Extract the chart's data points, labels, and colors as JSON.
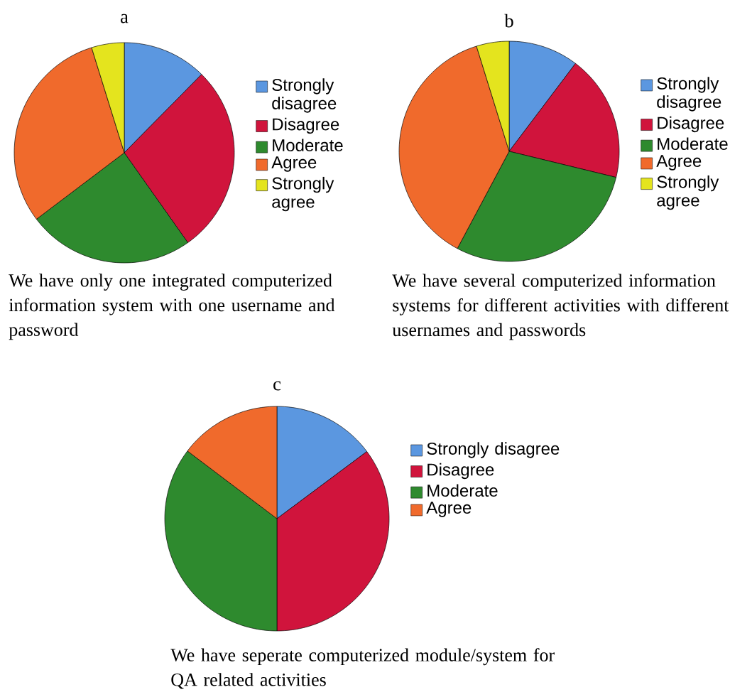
{
  "chart_data": [
    {
      "type": "pie",
      "title": "a",
      "categories": [
        "Strongly disagree",
        "Disagree",
        "Moderate",
        "Agree",
        "Strongly agree"
      ],
      "values": [
        12.4,
        27.8,
        24.5,
        30.5,
        4.8
      ],
      "colors": [
        "#5b97e0",
        "#d0143c",
        "#2e8a2e",
        "#f06a2c",
        "#e4e41e"
      ],
      "legend": "right",
      "annotations": [
        "We have only one integrated computerized information system with one username and password"
      ]
    },
    {
      "type": "pie",
      "title": "b",
      "categories": [
        "Strongly disagree",
        "Disagree",
        "Moderate",
        "Agree",
        "Strongly agree"
      ],
      "values": [
        10.3,
        18.5,
        29.0,
        37.4,
        4.8
      ],
      "colors": [
        "#5b97e0",
        "#d0143c",
        "#2e8a2e",
        "#f06a2c",
        "#e4e41e"
      ],
      "legend": "right",
      "annotations": [
        "We have several computerized information systems for different activities with different usernames and passwords"
      ]
    },
    {
      "type": "pie",
      "title": "c",
      "categories": [
        "Strongly disagree",
        "Disagree",
        "Moderate",
        "Agree"
      ],
      "values": [
        14.8,
        35.2,
        35.3,
        14.7
      ],
      "colors": [
        "#5b97e0",
        "#d0143c",
        "#2e8a2e",
        "#f06a2c"
      ],
      "legend": "right",
      "annotations": [
        "We have seperate computerized module/system for QA related activities"
      ]
    }
  ]
}
